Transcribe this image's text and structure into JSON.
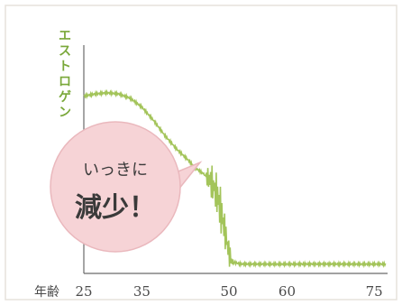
{
  "chart_data": {
    "type": "line",
    "ylabel": "エストロゲン",
    "xlabel": "年齢",
    "xticks": [
      25,
      35,
      50,
      60,
      75
    ],
    "xlim": [
      25,
      77
    ],
    "ylim": [
      0,
      100
    ],
    "grid": false,
    "series": [
      {
        "color": "#a3c45a",
        "points": [
          [
            25,
            79
          ],
          [
            27,
            80
          ],
          [
            29,
            80.5
          ],
          [
            31,
            80
          ],
          [
            33,
            78
          ],
          [
            35,
            74
          ],
          [
            37,
            68
          ],
          [
            39,
            61
          ],
          [
            41,
            55
          ],
          [
            43,
            50
          ],
          [
            44,
            47
          ],
          [
            45,
            45
          ],
          [
            46,
            43
          ],
          [
            47,
            40
          ],
          [
            48,
            34
          ],
          [
            49,
            22
          ],
          [
            50,
            8
          ],
          [
            50.5,
            4
          ],
          [
            52,
            3
          ],
          [
            55,
            3
          ],
          [
            60,
            3
          ],
          [
            65,
            3
          ],
          [
            70,
            3
          ],
          [
            75,
            3
          ],
          [
            77,
            3
          ]
        ]
      }
    ],
    "annotation": {
      "line1": "いっきに",
      "line2": "減少！",
      "fill": "#f6d3d6",
      "stroke": "#eab8bd"
    }
  }
}
